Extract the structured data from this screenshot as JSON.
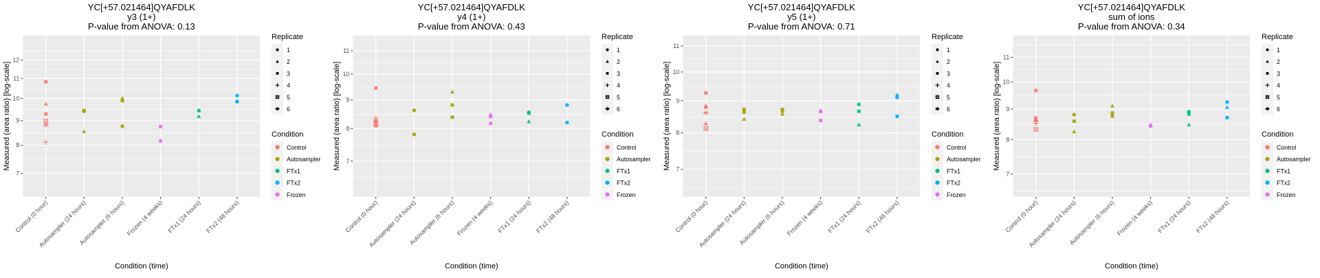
{
  "figure": {
    "legend_replicate_title": "Replicate",
    "legend_condition_title": "Condition",
    "replicates": [
      {
        "id": 1,
        "label": "1",
        "shape": "circle"
      },
      {
        "id": 2,
        "label": "2",
        "shape": "triangle"
      },
      {
        "id": 3,
        "label": "3",
        "shape": "square"
      },
      {
        "id": 4,
        "label": "4",
        "shape": "plus"
      },
      {
        "id": 5,
        "label": "5",
        "shape": "square-cross"
      },
      {
        "id": 6,
        "label": "6",
        "shape": "asterisk"
      }
    ],
    "conditions": [
      {
        "key": "Control",
        "label": "Control",
        "color": "#F8766D"
      },
      {
        "key": "Autosampler",
        "label": "Autosampler",
        "color": "#A3A500"
      },
      {
        "key": "FTx1",
        "label": "FTx1",
        "color": "#00BF7D"
      },
      {
        "key": "FTx2",
        "label": "FTx2",
        "color": "#00B0F6"
      },
      {
        "key": "Frozen",
        "label": "Frozen",
        "color": "#E76BF3"
      }
    ],
    "colors": {
      "panel_background": "#EBEBEB",
      "grid": "#FFFFFF",
      "tick": "#333333",
      "tick_label": "#4D4D4D",
      "legend_key_bg": "#F2F2F2"
    }
  },
  "chart_data": [
    {
      "type": "scatter",
      "title": [
        "YC[+57.021464]QYAFDLK",
        "y3 (1+)",
        "P-value from ANOVA: 0.13"
      ],
      "xlabel": "Condition (time)",
      "ylabel": "Measured (area ratio) [log-scale]",
      "yscale": "log",
      "ylim": [
        6.26,
        13.5
      ],
      "yticks": [
        7,
        8,
        9,
        10,
        11,
        12
      ],
      "grid": true,
      "legend": "right",
      "categories": [
        "Control (0 hour)",
        "Autosampler (24 hours)",
        "Autosampler (6 hours)",
        "Frozen (4 weeks)",
        "FTx1 (24 hours)",
        "FTx2 (48 hours)"
      ],
      "points": [
        {
          "x": 0,
          "y": 10.83,
          "rep": 3,
          "cond": "Control"
        },
        {
          "x": 0,
          "y": 9.74,
          "rep": 2,
          "cond": "Control"
        },
        {
          "x": 0,
          "y": 9.29,
          "rep": 1,
          "cond": "Control"
        },
        {
          "x": 0,
          "y": 8.98,
          "rep": 5,
          "cond": "Control"
        },
        {
          "x": 0,
          "y": 8.82,
          "rep": 6,
          "cond": "Control"
        },
        {
          "x": 0,
          "y": 8.12,
          "rep": 4,
          "cond": "Control"
        },
        {
          "x": 1,
          "y": 9.44,
          "rep": 3,
          "cond": "Autosampler"
        },
        {
          "x": 1,
          "y": 9.41,
          "rep": 1,
          "cond": "Autosampler"
        },
        {
          "x": 1,
          "y": 8.54,
          "rep": 2,
          "cond": "Autosampler"
        },
        {
          "x": 2,
          "y": 10.01,
          "rep": 2,
          "cond": "Autosampler"
        },
        {
          "x": 2,
          "y": 9.89,
          "rep": 3,
          "cond": "Autosampler"
        },
        {
          "x": 2,
          "y": 8.76,
          "rep": 1,
          "cond": "Autosampler"
        },
        {
          "x": 3,
          "y": 8.75,
          "rep": 3,
          "cond": "Frozen"
        },
        {
          "x": 3,
          "y": 8.17,
          "rep": 1,
          "cond": "Frozen"
        },
        {
          "x": 4,
          "y": 9.44,
          "rep": 1,
          "cond": "FTx1"
        },
        {
          "x": 4,
          "y": 9.18,
          "rep": 2,
          "cond": "FTx1"
        },
        {
          "x": 5,
          "y": 10.14,
          "rep": 1,
          "cond": "FTx2"
        },
        {
          "x": 5,
          "y": 9.88,
          "rep": 2,
          "cond": "FTx2"
        },
        {
          "x": 5,
          "y": 9.85,
          "rep": 1,
          "cond": "FTx2"
        }
      ]
    },
    {
      "type": "scatter",
      "title": [
        "YC[+57.021464]QYAFDLK",
        "y4 (1+)",
        "P-value from ANOVA: 0.43"
      ],
      "xlabel": "Condition (time)",
      "ylabel": "Measured (area ratio) [log-scale]",
      "yscale": "log",
      "ylim": [
        6.05,
        11.71
      ],
      "yticks": [
        7,
        8,
        9,
        10,
        11
      ],
      "grid": true,
      "legend": "right",
      "categories": [
        "Control (0 hour)",
        "Autosampler (24 hours)",
        "Autosampler (6 hours)",
        "Frozen (4 weeks)",
        "FTx1 (24 hours)",
        "FTx2 (48 hours)"
      ],
      "points": [
        {
          "x": 0,
          "y": 9.44,
          "rep": 3,
          "cond": "Control"
        },
        {
          "x": 0,
          "y": 8.35,
          "rep": 4,
          "cond": "Control"
        },
        {
          "x": 0,
          "y": 8.27,
          "rep": 6,
          "cond": "Control"
        },
        {
          "x": 0,
          "y": 8.22,
          "rep": 2,
          "cond": "Control"
        },
        {
          "x": 0,
          "y": 8.14,
          "rep": 5,
          "cond": "Control"
        },
        {
          "x": 0,
          "y": 8.09,
          "rep": 1,
          "cond": "Control"
        },
        {
          "x": 1,
          "y": 8.62,
          "rep": 1,
          "cond": "Autosampler"
        },
        {
          "x": 1,
          "y": 7.81,
          "rep": 3,
          "cond": "Autosampler"
        },
        {
          "x": 2,
          "y": 9.29,
          "rep": 2,
          "cond": "Autosampler"
        },
        {
          "x": 2,
          "y": 8.81,
          "rep": 1,
          "cond": "Autosampler"
        },
        {
          "x": 2,
          "y": 8.38,
          "rep": 3,
          "cond": "Autosampler"
        },
        {
          "x": 3,
          "y": 8.47,
          "rep": 2,
          "cond": "Frozen"
        },
        {
          "x": 3,
          "y": 8.4,
          "rep": 1,
          "cond": "Frozen"
        },
        {
          "x": 3,
          "y": 8.17,
          "rep": 3,
          "cond": "Frozen"
        },
        {
          "x": 4,
          "y": 8.55,
          "rep": 1,
          "cond": "FTx1"
        },
        {
          "x": 4,
          "y": 8.52,
          "rep": 3,
          "cond": "FTx1"
        },
        {
          "x": 4,
          "y": 8.23,
          "rep": 2,
          "cond": "FTx1"
        },
        {
          "x": 5,
          "y": 8.81,
          "rep": 1,
          "cond": "FTx2"
        },
        {
          "x": 5,
          "y": 8.2,
          "rep": 1,
          "cond": "FTx2"
        }
      ]
    },
    {
      "type": "scatter",
      "title": [
        "YC[+57.021464]QYAFDLK",
        "y5 (1+)",
        "P-value from ANOVA: 0.71"
      ],
      "xlabel": "Condition (time)",
      "ylabel": "Measured (area ratio) [log-scale]",
      "yscale": "log",
      "ylim": [
        6.33,
        11.43
      ],
      "yticks": [
        7,
        8,
        9,
        10,
        11
      ],
      "grid": true,
      "legend": "right",
      "categories": [
        "Control (0 hour)",
        "Autosampler (24 hours)",
        "Autosampler (6 hours)",
        "Frozen (4 weeks)",
        "FTx1 (24 hours)",
        "FTx2 (48 hours)"
      ],
      "points": [
        {
          "x": 0,
          "y": 9.26,
          "rep": 3,
          "cond": "Control"
        },
        {
          "x": 0,
          "y": 8.83,
          "rep": 2,
          "cond": "Control"
        },
        {
          "x": 0,
          "y": 8.79,
          "rep": 1,
          "cond": "Control"
        },
        {
          "x": 0,
          "y": 8.61,
          "rep": 6,
          "cond": "Control"
        },
        {
          "x": 0,
          "y": 8.28,
          "rep": 2,
          "cond": "Control"
        },
        {
          "x": 0,
          "y": 8.13,
          "rep": 5,
          "cond": "Control"
        },
        {
          "x": 1,
          "y": 8.72,
          "rep": 3,
          "cond": "Autosampler"
        },
        {
          "x": 1,
          "y": 8.63,
          "rep": 1,
          "cond": "Autosampler"
        },
        {
          "x": 1,
          "y": 8.41,
          "rep": 2,
          "cond": "Autosampler"
        },
        {
          "x": 2,
          "y": 8.72,
          "rep": 1,
          "cond": "Autosampler"
        },
        {
          "x": 2,
          "y": 8.67,
          "rep": 3,
          "cond": "Autosampler"
        },
        {
          "x": 2,
          "y": 8.57,
          "rep": 2,
          "cond": "Autosampler"
        },
        {
          "x": 3,
          "y": 8.68,
          "rep": 2,
          "cond": "Frozen"
        },
        {
          "x": 3,
          "y": 8.65,
          "rep": 1,
          "cond": "Frozen"
        },
        {
          "x": 3,
          "y": 8.37,
          "rep": 3,
          "cond": "Frozen"
        },
        {
          "x": 4,
          "y": 8.88,
          "rep": 1,
          "cond": "FTx1"
        },
        {
          "x": 4,
          "y": 8.66,
          "rep": 3,
          "cond": "FTx1"
        },
        {
          "x": 4,
          "y": 8.24,
          "rep": 2,
          "cond": "FTx1"
        },
        {
          "x": 5,
          "y": 9.2,
          "rep": 2,
          "cond": "FTx2"
        },
        {
          "x": 5,
          "y": 9.11,
          "rep": 1,
          "cond": "FTx2"
        },
        {
          "x": 5,
          "y": 8.5,
          "rep": 3,
          "cond": "FTx2"
        }
      ]
    },
    {
      "type": "scatter",
      "title": [
        "YC[+57.021464]QYAFDLK",
        "sum of ions",
        "P-value from ANOVA: 0.34"
      ],
      "xlabel": "Condition (time)",
      "ylabel": "Measured (area ratio) [log-scale]",
      "yscale": "log",
      "ylim": [
        6.41,
        11.97
      ],
      "yticks": [
        7,
        8,
        9,
        10,
        11
      ],
      "grid": true,
      "legend": "right",
      "categories": [
        "Control (0 hour)",
        "Autosampler (24 hours)",
        "Autosampler (6 hours)",
        "Frozen (4 weeks)",
        "FTx1 (24 hours)",
        "FTx2 (48 hours)"
      ],
      "points": [
        {
          "x": 0,
          "y": 9.67,
          "rep": 3,
          "cond": "Control"
        },
        {
          "x": 0,
          "y": 8.7,
          "rep": 1,
          "cond": "Control"
        },
        {
          "x": 0,
          "y": 8.63,
          "rep": 2,
          "cond": "Control"
        },
        {
          "x": 0,
          "y": 8.6,
          "rep": 6,
          "cond": "Control"
        },
        {
          "x": 0,
          "y": 8.52,
          "rep": 4,
          "cond": "Control"
        },
        {
          "x": 0,
          "y": 8.32,
          "rep": 5,
          "cond": "Control"
        },
        {
          "x": 1,
          "y": 8.81,
          "rep": 1,
          "cond": "Autosampler"
        },
        {
          "x": 1,
          "y": 8.59,
          "rep": 3,
          "cond": "Autosampler"
        },
        {
          "x": 1,
          "y": 8.25,
          "rep": 2,
          "cond": "Autosampler"
        },
        {
          "x": 2,
          "y": 9.11,
          "rep": 2,
          "cond": "Autosampler"
        },
        {
          "x": 2,
          "y": 8.87,
          "rep": 3,
          "cond": "Autosampler"
        },
        {
          "x": 2,
          "y": 8.76,
          "rep": 1,
          "cond": "Autosampler"
        },
        {
          "x": 3,
          "y": 8.48,
          "rep": 2,
          "cond": "Frozen"
        },
        {
          "x": 3,
          "y": 8.43,
          "rep": 1,
          "cond": "Frozen"
        },
        {
          "x": 4,
          "y": 8.91,
          "rep": 1,
          "cond": "FTx1"
        },
        {
          "x": 4,
          "y": 8.83,
          "rep": 3,
          "cond": "FTx1"
        },
        {
          "x": 4,
          "y": 8.47,
          "rep": 2,
          "cond": "FTx1"
        },
        {
          "x": 5,
          "y": 9.25,
          "rep": 1,
          "cond": "FTx2"
        },
        {
          "x": 5,
          "y": 9.06,
          "rep": 2,
          "cond": "FTx2"
        },
        {
          "x": 5,
          "y": 8.71,
          "rep": 3,
          "cond": "FTx2"
        }
      ]
    }
  ]
}
